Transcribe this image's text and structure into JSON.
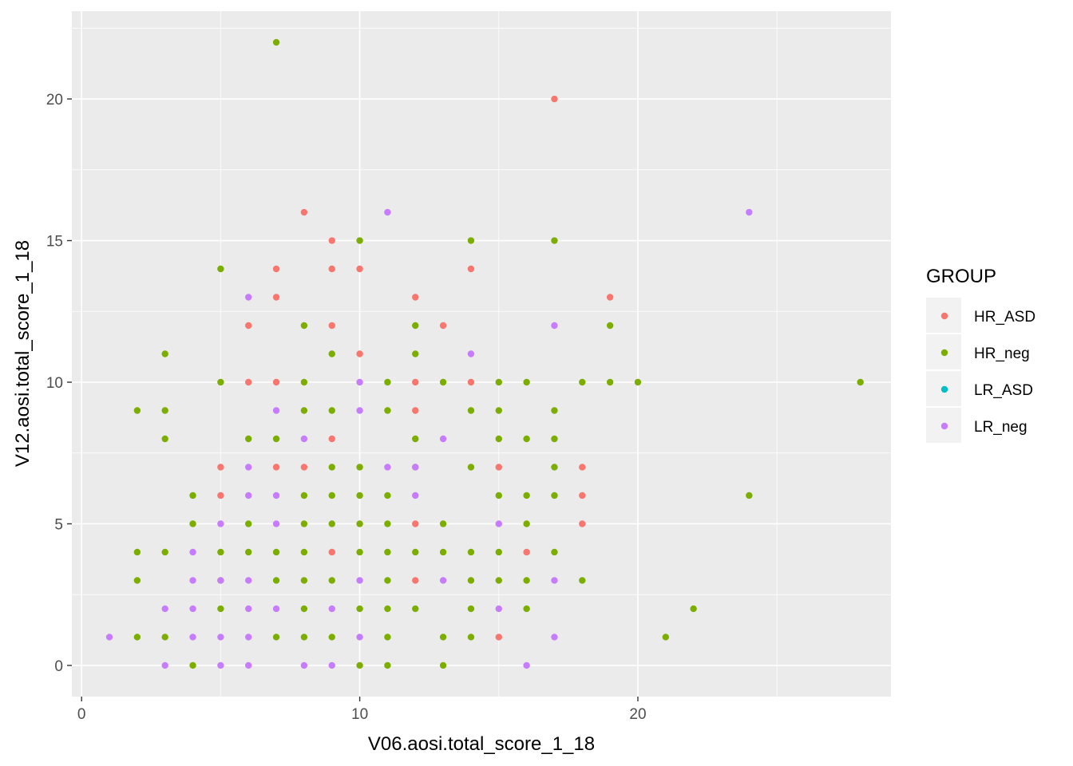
{
  "chart_data": {
    "type": "scatter",
    "xlabel": "V06.aosi.total_score_1_18",
    "ylabel": "V12.aosi.total_score_1_18",
    "xlim": [
      -0.35,
      29.1
    ],
    "ylim": [
      -1.1,
      23.1
    ],
    "x_ticks": [
      0,
      10,
      20
    ],
    "x_tick_labels": [
      "0",
      "10",
      "20"
    ],
    "y_ticks": [
      0,
      5,
      10,
      15,
      20
    ],
    "y_tick_labels": [
      "0",
      "5",
      "10",
      "15",
      "20"
    ],
    "grid": true,
    "background": "#ebebeb",
    "legend": {
      "title": "GROUP",
      "position": "right"
    },
    "series": [
      {
        "name": "HR_ASD",
        "color": "#f8766d",
        "points": [
          [
            17,
            20
          ],
          [
            8,
            16
          ],
          [
            9,
            15
          ],
          [
            7,
            14
          ],
          [
            9,
            14
          ],
          [
            10,
            14
          ],
          [
            14,
            14
          ],
          [
            7,
            13
          ],
          [
            12,
            13
          ],
          [
            19,
            13
          ],
          [
            6,
            12
          ],
          [
            9,
            12
          ],
          [
            13,
            12
          ],
          [
            6,
            10
          ],
          [
            7,
            10
          ],
          [
            10,
            11
          ],
          [
            12,
            10
          ],
          [
            14,
            10
          ],
          [
            12,
            9
          ],
          [
            9,
            8
          ],
          [
            5,
            7
          ],
          [
            7,
            7
          ],
          [
            8,
            7
          ],
          [
            15,
            7
          ],
          [
            18,
            7
          ],
          [
            5,
            6
          ],
          [
            18,
            6
          ],
          [
            12,
            5
          ],
          [
            18,
            5
          ],
          [
            9,
            4
          ],
          [
            16,
            4
          ],
          [
            12,
            3
          ],
          [
            15,
            1
          ]
        ]
      },
      {
        "name": "HR_neg",
        "color": "#7cae00",
        "points": [
          [
            7,
            22
          ],
          [
            10,
            15
          ],
          [
            14,
            15
          ],
          [
            17,
            15
          ],
          [
            5,
            14
          ],
          [
            8,
            12
          ],
          [
            12,
            12
          ],
          [
            19,
            12
          ],
          [
            3,
            11
          ],
          [
            9,
            11
          ],
          [
            12,
            11
          ],
          [
            5,
            10
          ],
          [
            8,
            10
          ],
          [
            11,
            10
          ],
          [
            13,
            10
          ],
          [
            15,
            10
          ],
          [
            16,
            10
          ],
          [
            18,
            10
          ],
          [
            19,
            10
          ],
          [
            20,
            10
          ],
          [
            28,
            10
          ],
          [
            2,
            9
          ],
          [
            3,
            9
          ],
          [
            8,
            9
          ],
          [
            9,
            9
          ],
          [
            11,
            9
          ],
          [
            14,
            9
          ],
          [
            15,
            9
          ],
          [
            17,
            9
          ],
          [
            3,
            8
          ],
          [
            6,
            8
          ],
          [
            7,
            8
          ],
          [
            12,
            8
          ],
          [
            15,
            8
          ],
          [
            16,
            8
          ],
          [
            17,
            8
          ],
          [
            9,
            7
          ],
          [
            10,
            7
          ],
          [
            12,
            7
          ],
          [
            14,
            7
          ],
          [
            17,
            7
          ],
          [
            4,
            6
          ],
          [
            8,
            6
          ],
          [
            9,
            6
          ],
          [
            10,
            6
          ],
          [
            11,
            6
          ],
          [
            15,
            6
          ],
          [
            16,
            6
          ],
          [
            17,
            6
          ],
          [
            24,
            6
          ],
          [
            4,
            5
          ],
          [
            6,
            5
          ],
          [
            8,
            5
          ],
          [
            9,
            5
          ],
          [
            10,
            5
          ],
          [
            11,
            5
          ],
          [
            13,
            5
          ],
          [
            16,
            5
          ],
          [
            2,
            4
          ],
          [
            3,
            4
          ],
          [
            5,
            4
          ],
          [
            6,
            4
          ],
          [
            7,
            4
          ],
          [
            8,
            4
          ],
          [
            10,
            4
          ],
          [
            11,
            4
          ],
          [
            12,
            4
          ],
          [
            13,
            4
          ],
          [
            14,
            4
          ],
          [
            15,
            4
          ],
          [
            17,
            4
          ],
          [
            2,
            3
          ],
          [
            5,
            3
          ],
          [
            7,
            3
          ],
          [
            8,
            3
          ],
          [
            9,
            3
          ],
          [
            11,
            3
          ],
          [
            14,
            3
          ],
          [
            15,
            3
          ],
          [
            16,
            3
          ],
          [
            18,
            3
          ],
          [
            5,
            2
          ],
          [
            8,
            2
          ],
          [
            10,
            2
          ],
          [
            11,
            2
          ],
          [
            12,
            2
          ],
          [
            14,
            2
          ],
          [
            16,
            2
          ],
          [
            22,
            2
          ],
          [
            2,
            1
          ],
          [
            3,
            1
          ],
          [
            7,
            1
          ],
          [
            8,
            1
          ],
          [
            9,
            1
          ],
          [
            11,
            1
          ],
          [
            13,
            1
          ],
          [
            14,
            1
          ],
          [
            21,
            1
          ],
          [
            4,
            0
          ],
          [
            10,
            0
          ],
          [
            11,
            0
          ],
          [
            13,
            0
          ]
        ]
      },
      {
        "name": "LR_ASD",
        "color": "#00bfc4",
        "points": []
      },
      {
        "name": "LR_neg",
        "color": "#c77cff",
        "points": [
          [
            11,
            16
          ],
          [
            24,
            16
          ],
          [
            6,
            13
          ],
          [
            17,
            12
          ],
          [
            14,
            11
          ],
          [
            10,
            10
          ],
          [
            7,
            9
          ],
          [
            10,
            9
          ],
          [
            8,
            8
          ],
          [
            13,
            8
          ],
          [
            6,
            7
          ],
          [
            11,
            7
          ],
          [
            12,
            7
          ],
          [
            6,
            6
          ],
          [
            7,
            6
          ],
          [
            12,
            6
          ],
          [
            5,
            5
          ],
          [
            7,
            5
          ],
          [
            15,
            5
          ],
          [
            4,
            4
          ],
          [
            4,
            3
          ],
          [
            5,
            3
          ],
          [
            6,
            3
          ],
          [
            10,
            3
          ],
          [
            13,
            3
          ],
          [
            17,
            3
          ],
          [
            3,
            2
          ],
          [
            4,
            2
          ],
          [
            6,
            2
          ],
          [
            7,
            2
          ],
          [
            9,
            2
          ],
          [
            15,
            2
          ],
          [
            1,
            1
          ],
          [
            4,
            1
          ],
          [
            5,
            1
          ],
          [
            6,
            1
          ],
          [
            10,
            1
          ],
          [
            17,
            1
          ],
          [
            3,
            0
          ],
          [
            5,
            0
          ],
          [
            6,
            0
          ],
          [
            8,
            0
          ],
          [
            9,
            0
          ],
          [
            16,
            0
          ]
        ]
      }
    ]
  }
}
